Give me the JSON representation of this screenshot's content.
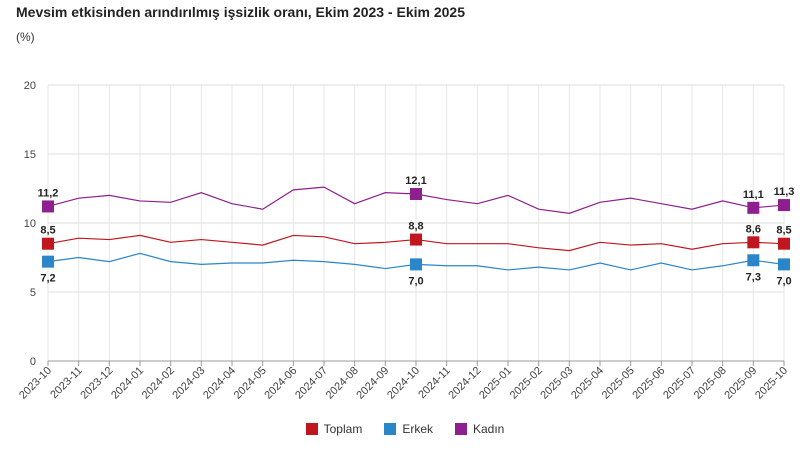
{
  "chart_data": {
    "type": "line",
    "title": "Mevsim etkisinden arındırılmış işsizlik oranı, Ekim 2023 - Ekim 2025",
    "unit": "(%)",
    "ylim": [
      0,
      20
    ],
    "yticks": [
      0,
      5,
      10,
      15,
      20
    ],
    "grid": true,
    "legend_position": "bottom",
    "categories": [
      "2023-10",
      "2023-11",
      "2023-12",
      "2024-01",
      "2024-02",
      "2024-03",
      "2024-04",
      "2024-05",
      "2024-06",
      "2024-07",
      "2024-08",
      "2024-09",
      "2024-10",
      "2024-11",
      "2024-12",
      "2025-01",
      "2025-02",
      "2025-03",
      "2025-04",
      "2025-05",
      "2025-06",
      "2025-07",
      "2025-08",
      "2025-09",
      "2025-10"
    ],
    "series": [
      {
        "name": "Kadın",
        "color": "#8e1f8e",
        "values": [
          11.2,
          11.8,
          12.0,
          11.6,
          11.5,
          12.2,
          11.4,
          11.0,
          12.4,
          12.6,
          11.4,
          12.2,
          12.1,
          11.7,
          11.4,
          12.0,
          11.0,
          10.7,
          11.5,
          11.8,
          11.4,
          11.0,
          11.6,
          11.1,
          11.3
        ],
        "labels": {
          "0": "11,2",
          "12": "12,1",
          "23": "11,1",
          "24": "11,3"
        }
      },
      {
        "name": "Toplam",
        "color": "#c0161d",
        "values": [
          8.5,
          8.9,
          8.8,
          9.1,
          8.6,
          8.8,
          8.6,
          8.4,
          9.1,
          9.0,
          8.5,
          8.6,
          8.8,
          8.5,
          8.5,
          8.5,
          8.2,
          8.0,
          8.6,
          8.4,
          8.5,
          8.1,
          8.5,
          8.6,
          8.5
        ],
        "labels": {
          "0": "8,5",
          "12": "8,8",
          "23": "8,6",
          "24": "8,5"
        }
      },
      {
        "name": "Erkek",
        "color": "#2a85c9",
        "values": [
          7.2,
          7.5,
          7.2,
          7.8,
          7.2,
          7.0,
          7.1,
          7.1,
          7.3,
          7.2,
          7.0,
          6.7,
          7.0,
          6.9,
          6.9,
          6.6,
          6.8,
          6.6,
          7.1,
          6.6,
          7.1,
          6.6,
          6.9,
          7.3,
          7.0
        ],
        "labels": {
          "0": "7,2",
          "12": "7,0",
          "23": "7,3",
          "24": "7,0"
        }
      }
    ],
    "legend": [
      {
        "name": "Toplam",
        "color": "#c0161d"
      },
      {
        "name": "Erkek",
        "color": "#2a85c9"
      },
      {
        "name": "Kadın",
        "color": "#8e1f8e"
      }
    ]
  }
}
